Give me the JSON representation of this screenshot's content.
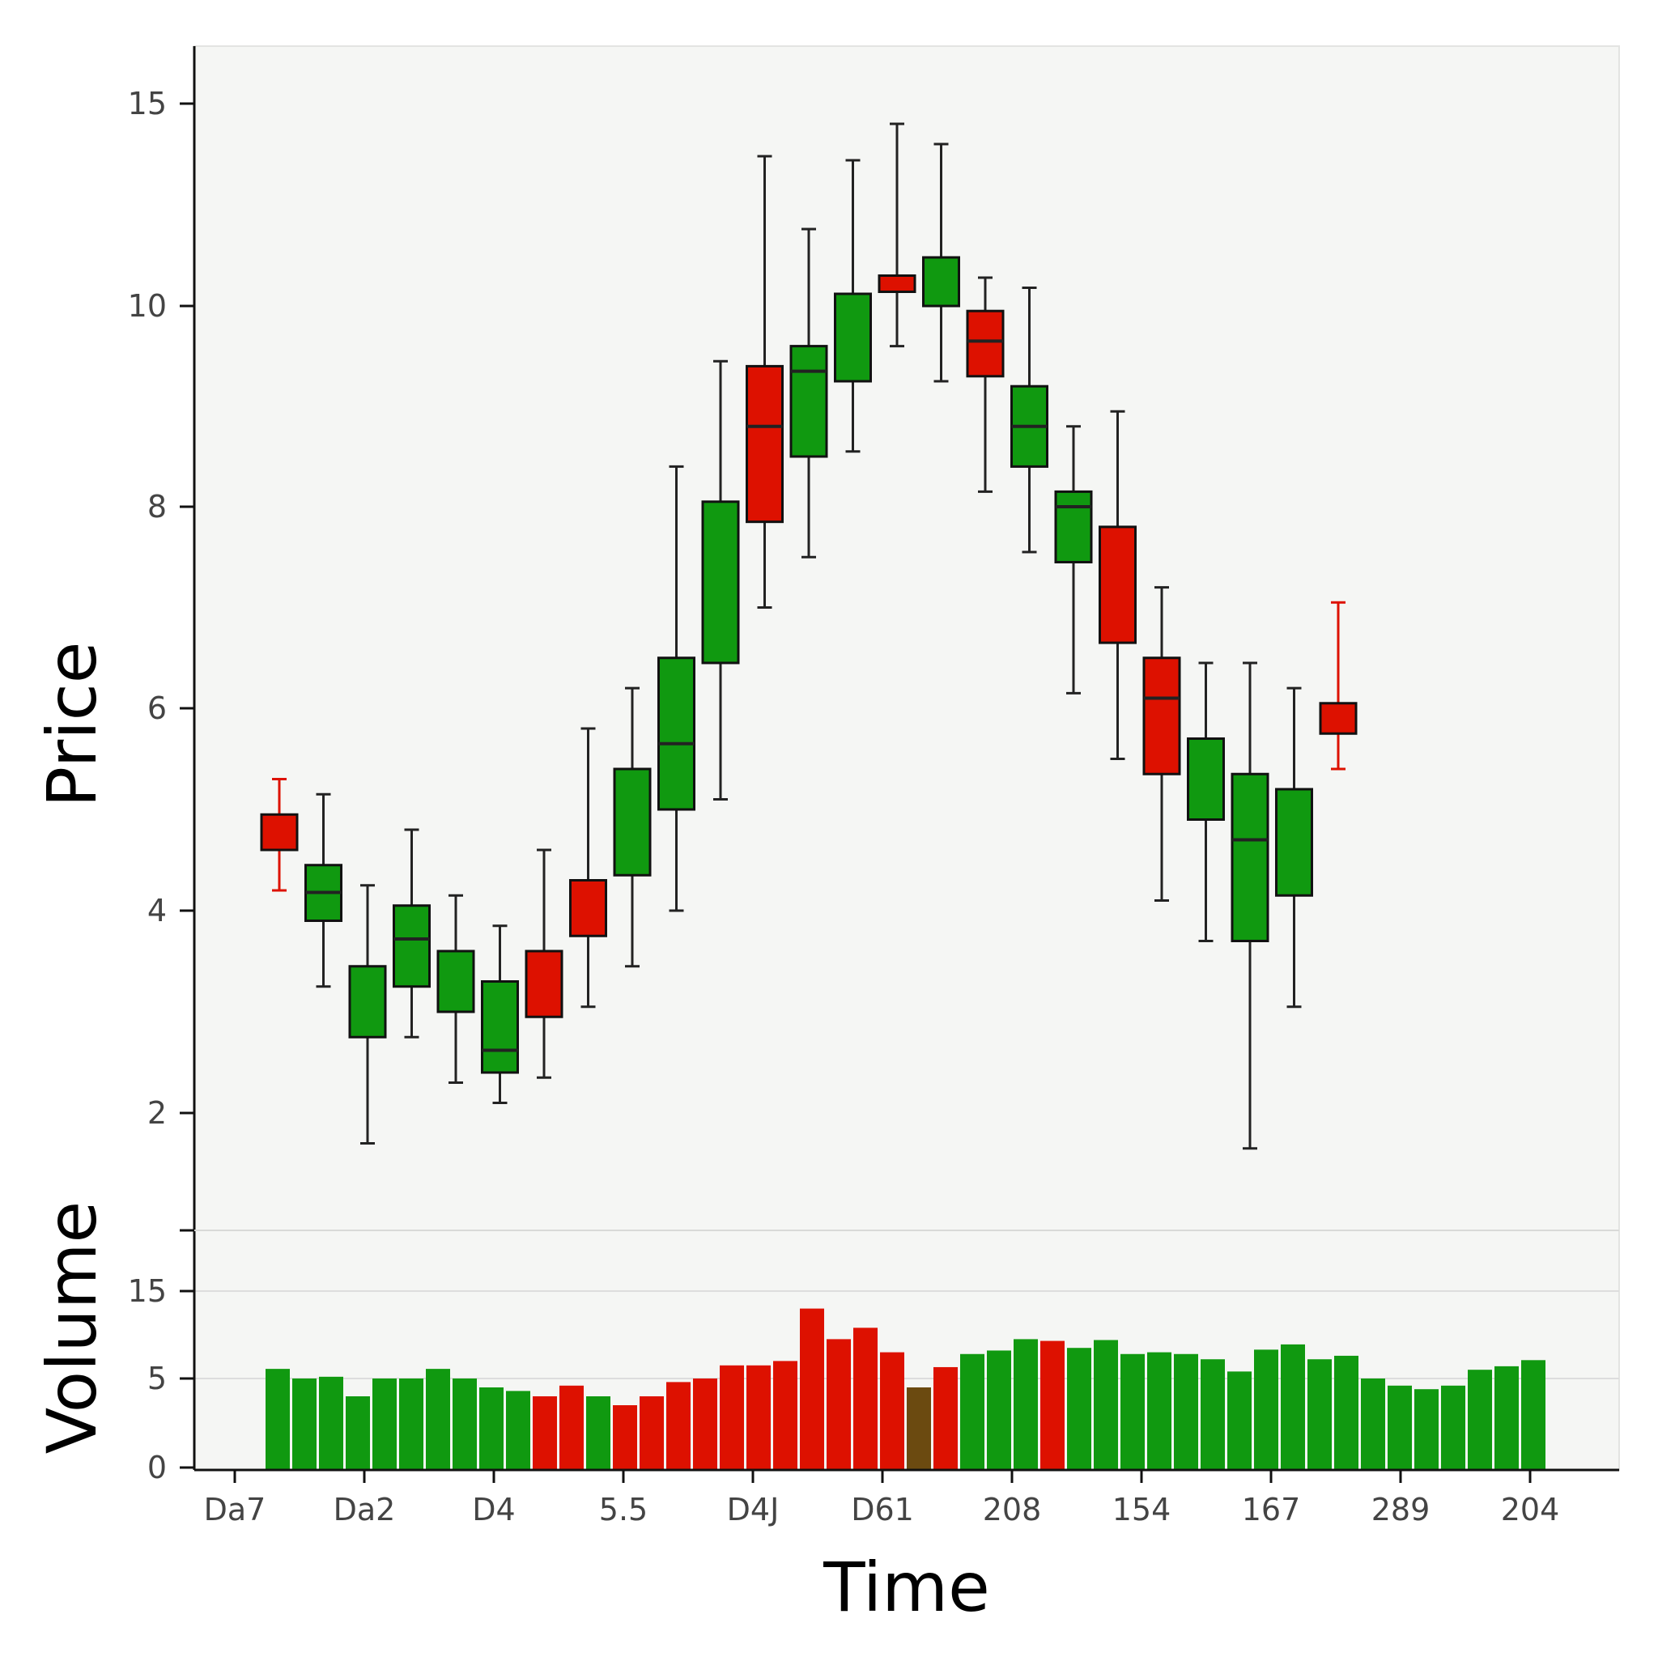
{
  "chart_data": {
    "type": "candlestick",
    "xlabel": "Time",
    "price_panel": {
      "ylabel": "Price",
      "yticks": [
        2,
        4,
        6,
        8,
        10,
        15
      ],
      "candles": [
        {
          "open": 4.6,
          "close": 4.95,
          "high": 5.3,
          "low": 4.2,
          "median": null,
          "color": "red"
        },
        {
          "open": 3.9,
          "close": 4.45,
          "high": 5.15,
          "low": 3.25,
          "median": 4.18,
          "color": "green"
        },
        {
          "open": 2.75,
          "close": 3.45,
          "high": 4.25,
          "low": 1.7,
          "median": null,
          "color": "green"
        },
        {
          "open": 3.25,
          "close": 4.05,
          "high": 4.8,
          "low": 2.75,
          "median": 3.72,
          "color": "green"
        },
        {
          "open": 3.0,
          "close": 3.6,
          "high": 4.15,
          "low": 2.3,
          "median": null,
          "color": "green"
        },
        {
          "open": 2.4,
          "close": 3.3,
          "high": 3.85,
          "low": 2.1,
          "median": 2.62,
          "color": "green"
        },
        {
          "open": 2.95,
          "close": 3.6,
          "high": 4.6,
          "low": 2.35,
          "median": null,
          "color": "red"
        },
        {
          "open": 3.75,
          "close": 4.3,
          "high": 5.8,
          "low": 3.05,
          "median": null,
          "color": "red"
        },
        {
          "open": 4.35,
          "close": 5.4,
          "high": 6.2,
          "low": 3.45,
          "median": null,
          "color": "green"
        },
        {
          "open": 5.0,
          "close": 6.5,
          "high": 8.4,
          "low": 4.0,
          "median": 5.65,
          "color": "green"
        },
        {
          "open": 6.45,
          "close": 8.05,
          "high": 9.45,
          "low": 5.1,
          "median": null,
          "color": "green"
        },
        {
          "open": 7.85,
          "close": 9.4,
          "high": 13.7,
          "low": 7.0,
          "median": 8.8,
          "color": "red"
        },
        {
          "open": 8.5,
          "close": 9.6,
          "high": 11.9,
          "low": 7.5,
          "median": 9.35,
          "color": "green"
        },
        {
          "open": 9.25,
          "close": 10.3,
          "high": 13.6,
          "low": 8.55,
          "median": null,
          "color": "green"
        },
        {
          "open": 10.35,
          "close": 10.75,
          "high": 14.5,
          "low": 9.6,
          "median": null,
          "color": "red"
        },
        {
          "open": 10.0,
          "close": 11.2,
          "high": 14.0,
          "low": 9.25,
          "median": null,
          "color": "green"
        },
        {
          "open": 9.3,
          "close": 9.95,
          "high": 10.7,
          "low": 8.15,
          "median": 9.65,
          "color": "red"
        },
        {
          "open": 8.4,
          "close": 9.2,
          "high": 10.45,
          "low": 7.55,
          "median": 8.8,
          "color": "green"
        },
        {
          "open": 7.45,
          "close": 8.15,
          "high": 8.8,
          "low": 6.15,
          "median": 8.0,
          "color": "green"
        },
        {
          "open": 6.65,
          "close": 7.8,
          "high": 8.95,
          "low": 5.5,
          "median": null,
          "color": "red"
        },
        {
          "open": 5.35,
          "close": 6.5,
          "high": 7.2,
          "low": 4.1,
          "median": 6.1,
          "color": "red"
        },
        {
          "open": 4.9,
          "close": 5.7,
          "high": 6.45,
          "low": 3.7,
          "median": null,
          "color": "green"
        },
        {
          "open": 3.7,
          "close": 5.35,
          "high": 6.45,
          "low": 1.65,
          "median": 4.7,
          "color": "green"
        },
        {
          "open": 4.15,
          "close": 5.2,
          "high": 6.2,
          "low": 3.05,
          "median": null,
          "color": "green"
        },
        {
          "open": 5.75,
          "close": 6.05,
          "high": 7.05,
          "low": 5.4,
          "median": null,
          "color": "red"
        }
      ]
    },
    "volume_panel": {
      "ylabel": "Volume",
      "yticks": [
        0,
        5,
        15
      ],
      "bars": [
        {
          "value": 6.1,
          "color": "green"
        },
        {
          "value": 5.0,
          "color": "green"
        },
        {
          "value": 5.2,
          "color": "green"
        },
        {
          "value": 4.0,
          "color": "green"
        },
        {
          "value": 5.0,
          "color": "green"
        },
        {
          "value": 5.0,
          "color": "green"
        },
        {
          "value": 6.1,
          "color": "green"
        },
        {
          "value": 5.0,
          "color": "green"
        },
        {
          "value": 4.5,
          "color": "green"
        },
        {
          "value": 4.3,
          "color": "green"
        },
        {
          "value": 4.0,
          "color": "red"
        },
        {
          "value": 4.6,
          "color": "red"
        },
        {
          "value": 4.0,
          "color": "green"
        },
        {
          "value": 3.5,
          "color": "red"
        },
        {
          "value": 4.0,
          "color": "red"
        },
        {
          "value": 4.8,
          "color": "red"
        },
        {
          "value": 5.0,
          "color": "red"
        },
        {
          "value": 6.5,
          "color": "red"
        },
        {
          "value": 6.5,
          "color": "red"
        },
        {
          "value": 7.0,
          "color": "red"
        },
        {
          "value": 13.0,
          "color": "red"
        },
        {
          "value": 9.5,
          "color": "red"
        },
        {
          "value": 10.8,
          "color": "red"
        },
        {
          "value": 8.0,
          "color": "red"
        },
        {
          "value": 4.5,
          "color": "brown"
        },
        {
          "value": 6.3,
          "color": "red"
        },
        {
          "value": 7.8,
          "color": "green"
        },
        {
          "value": 8.2,
          "color": "green"
        },
        {
          "value": 9.5,
          "color": "green"
        },
        {
          "value": 9.3,
          "color": "red"
        },
        {
          "value": 8.5,
          "color": "green"
        },
        {
          "value": 9.4,
          "color": "green"
        },
        {
          "value": 7.8,
          "color": "green"
        },
        {
          "value": 8.0,
          "color": "green"
        },
        {
          "value": 7.8,
          "color": "green"
        },
        {
          "value": 7.2,
          "color": "green"
        },
        {
          "value": 5.8,
          "color": "green"
        },
        {
          "value": 8.3,
          "color": "green"
        },
        {
          "value": 8.9,
          "color": "green"
        },
        {
          "value": 7.2,
          "color": "green"
        },
        {
          "value": 7.6,
          "color": "green"
        },
        {
          "value": 5.0,
          "color": "green"
        },
        {
          "value": 4.6,
          "color": "green"
        },
        {
          "value": 4.4,
          "color": "green"
        },
        {
          "value": 4.6,
          "color": "green"
        },
        {
          "value": 6.0,
          "color": "green"
        },
        {
          "value": 6.4,
          "color": "green"
        },
        {
          "value": 7.1,
          "color": "green"
        }
      ]
    },
    "x_tick_labels": [
      "Da7",
      "Da2",
      "D4",
      "5.5",
      "D4J",
      "D61",
      "208",
      "154",
      "167",
      "289",
      "204"
    ],
    "colors": {
      "up": "#109910",
      "down": "#dd1100",
      "neutral": "#6b4a10",
      "outline": "#111111",
      "background": "#f5f6f4"
    },
    "grid": "horizontal, volume panel only"
  }
}
